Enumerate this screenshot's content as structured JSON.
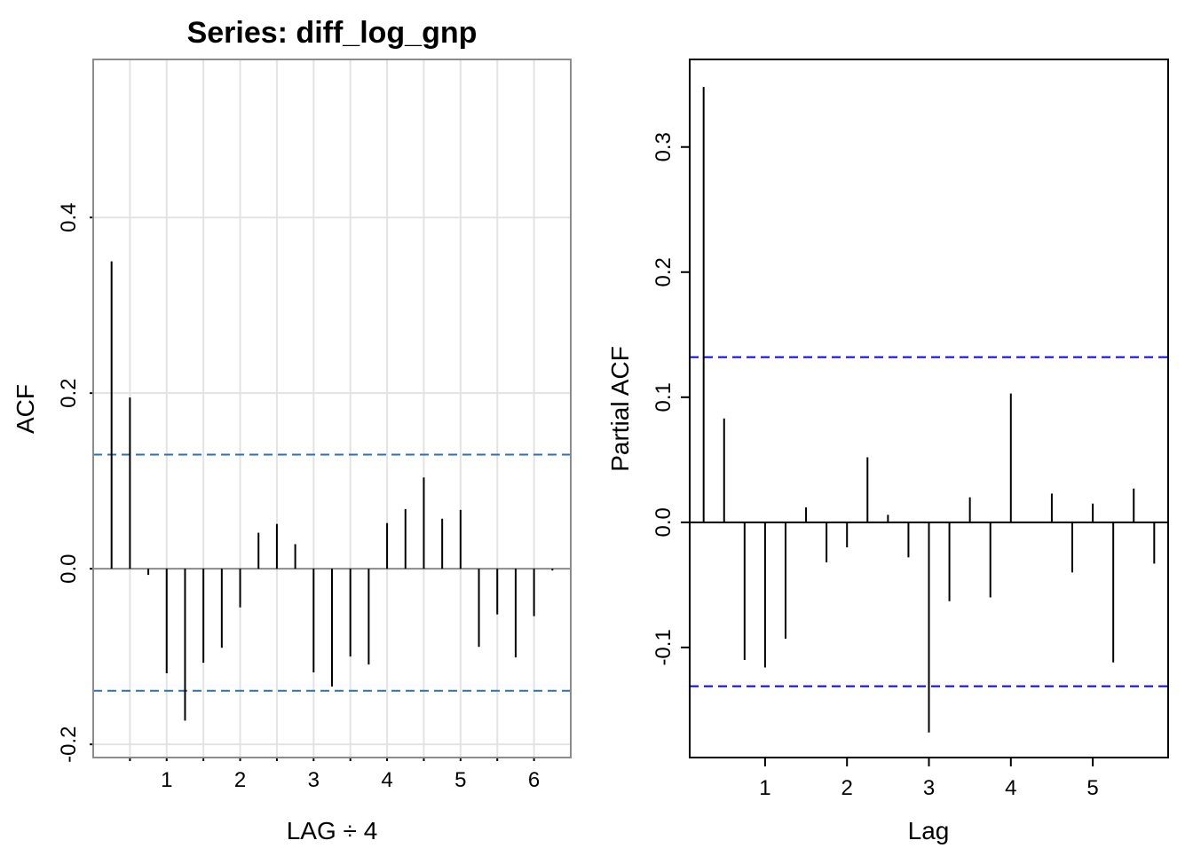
{
  "chart_data": [
    {
      "type": "bar",
      "title": "Series:  diff_log_gnp",
      "xlabel": "LAG ÷ 4",
      "ylabel": "ACF",
      "xlim": [
        0,
        6.5
      ],
      "ylim": [
        -0.215,
        0.58
      ],
      "x_ticks": [
        {
          "value": 1,
          "label": "1"
        },
        {
          "value": 2,
          "label": "2"
        },
        {
          "value": 3,
          "label": "3"
        },
        {
          "value": 4,
          "label": "4"
        },
        {
          "value": 5,
          "label": "5"
        },
        {
          "value": 6,
          "label": "6"
        }
      ],
      "y_ticks": [
        {
          "value": -0.2,
          "label": "-0.2"
        },
        {
          "value": 0.0,
          "label": "0.0"
        },
        {
          "value": 0.2,
          "label": "0.2"
        },
        {
          "value": 0.4,
          "label": "0.4"
        }
      ],
      "grid": true,
      "confidence_bounds": [
        0.13,
        -0.139
      ],
      "bound_color": "#2f6fb3",
      "x": [
        0.25,
        0.5,
        0.75,
        1.0,
        1.25,
        1.5,
        1.75,
        2.0,
        2.25,
        2.5,
        2.75,
        3.0,
        3.25,
        3.5,
        3.75,
        4.0,
        4.25,
        4.5,
        4.75,
        5.0,
        5.25,
        5.5,
        5.75,
        6.0,
        6.25
      ],
      "values": [
        0.35,
        0.195,
        -0.007,
        -0.119,
        -0.173,
        -0.107,
        -0.09,
        -0.044,
        0.041,
        0.051,
        0.028,
        -0.118,
        -0.134,
        -0.1,
        -0.109,
        0.052,
        0.068,
        0.104,
        0.057,
        0.067,
        -0.089,
        -0.052,
        -0.101,
        -0.054,
        -0.002
      ]
    },
    {
      "type": "bar",
      "title": "",
      "xlabel": "Lag",
      "ylabel": "Partial ACF",
      "xlim": [
        0.08,
        5.92
      ],
      "ylim": [
        -0.188,
        0.37
      ],
      "x_ticks": [
        {
          "value": 1,
          "label": "1"
        },
        {
          "value": 2,
          "label": "2"
        },
        {
          "value": 3,
          "label": "3"
        },
        {
          "value": 4,
          "label": "4"
        },
        {
          "value": 5,
          "label": "5"
        }
      ],
      "y_ticks": [
        {
          "value": -0.1,
          "label": "-0.1"
        },
        {
          "value": 0.0,
          "label": "0.0"
        },
        {
          "value": 0.1,
          "label": "0.1"
        },
        {
          "value": 0.2,
          "label": "0.2"
        },
        {
          "value": 0.3,
          "label": "0.3"
        }
      ],
      "grid": false,
      "confidence_bounds": [
        0.132,
        -0.131
      ],
      "bound_color": "#0000ff",
      "x": [
        0.25,
        0.5,
        0.75,
        1.0,
        1.25,
        1.5,
        1.75,
        2.0,
        2.25,
        2.5,
        2.75,
        3.0,
        3.25,
        3.5,
        3.75,
        4.0,
        4.25,
        4.5,
        4.75,
        5.0,
        5.25,
        5.5,
        5.75
      ],
      "values": [
        0.348,
        0.083,
        -0.11,
        -0.116,
        -0.093,
        0.012,
        -0.032,
        -0.02,
        0.052,
        0.006,
        -0.028,
        -0.168,
        -0.063,
        0.02,
        -0.06,
        0.103,
        0.0,
        0.023,
        -0.04,
        0.015,
        -0.112,
        0.027,
        -0.033
      ]
    }
  ]
}
